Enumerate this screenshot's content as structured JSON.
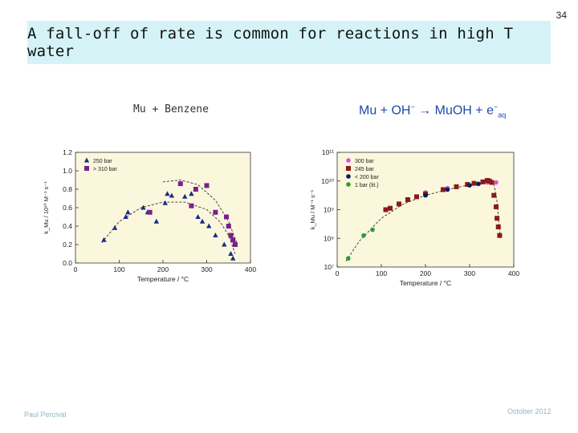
{
  "slide": {
    "number": "34",
    "title": "A fall-off of rate is common for reactions in high T water",
    "caption_left": "Mu + Benzene",
    "caption_right": {
      "r1": "Mu",
      "op1": " + ",
      "r2": "OH",
      "r2_sup": "−",
      "arrow": " → ",
      "p1": "MuOH",
      "op2": " + ",
      "p2": "e",
      "p2_sup": "−",
      "p2_sub": "aq"
    },
    "footer_author": "Paul Percival",
    "footer_date": "October 2012"
  },
  "colors": {
    "title_bg": "#d5f3f7",
    "plot_bg": "#fbf7dd",
    "navy": "#1b2a8a",
    "purple": "#7a1f8f",
    "pink": "#e04fd6",
    "brown": "#8b1a1a",
    "dark_navy": "#0b1a5c",
    "green": "#2a9a3a",
    "footer": "#8fb6c2",
    "caption_right": "#1f4aa8"
  },
  "chart_data": [
    {
      "type": "scatter",
      "title": "Mu + Benzene",
      "xlabel": "Temperature / °C",
      "ylabel": "k_Mu / 10¹⁰ M⁻¹ s⁻¹",
      "xlim": [
        0,
        400
      ],
      "ylim": [
        0,
        1.2
      ],
      "xticks": [
        0,
        100,
        200,
        300,
        400
      ],
      "yticks": [
        0.0,
        0.2,
        0.4,
        0.6,
        0.8,
        1.0,
        1.2
      ],
      "xtick_labels": [
        "0",
        "100",
        "200",
        "300",
        "400"
      ],
      "ytick_labels": [
        "0.0",
        "0.2",
        "0.4",
        "0.6",
        "0.8",
        "1.0",
        "1.2"
      ],
      "legend_position": "top-left",
      "series": [
        {
          "name": "250 bar",
          "marker": "triangle",
          "color": "#1b2a8a",
          "points": [
            [
              65,
              0.25
            ],
            [
              90,
              0.38
            ],
            [
              115,
              0.5
            ],
            [
              120,
              0.55
            ],
            [
              155,
              0.6
            ],
            [
              165,
              0.55
            ],
            [
              185,
              0.45
            ],
            [
              205,
              0.65
            ],
            [
              210,
              0.75
            ],
            [
              220,
              0.73
            ],
            [
              250,
              0.72
            ],
            [
              265,
              0.75
            ],
            [
              280,
              0.5
            ],
            [
              290,
              0.45
            ],
            [
              305,
              0.4
            ],
            [
              320,
              0.3
            ],
            [
              340,
              0.2
            ],
            [
              355,
              0.1
            ],
            [
              360,
              0.05
            ]
          ]
        },
        {
          "name": "> 310 bar",
          "marker": "square",
          "color": "#7a1f8f",
          "points": [
            [
              170,
              0.55
            ],
            [
              240,
              0.86
            ],
            [
              275,
              0.8
            ],
            [
              265,
              0.62
            ],
            [
              300,
              0.84
            ],
            [
              320,
              0.55
            ],
            [
              345,
              0.5
            ],
            [
              350,
              0.4
            ],
            [
              355,
              0.3
            ],
            [
              360,
              0.25
            ],
            [
              365,
              0.2
            ]
          ]
        }
      ],
      "fit_curves": [
        [
          [
            60,
            0.22
          ],
          [
            100,
            0.45
          ],
          [
            150,
            0.6
          ],
          [
            200,
            0.66
          ],
          [
            250,
            0.66
          ],
          [
            300,
            0.58
          ],
          [
            330,
            0.45
          ],
          [
            350,
            0.3
          ],
          [
            365,
            0.1
          ]
        ],
        [
          [
            200,
            0.88
          ],
          [
            240,
            0.9
          ],
          [
            280,
            0.85
          ],
          [
            320,
            0.68
          ],
          [
            350,
            0.45
          ],
          [
            370,
            0.2
          ]
        ]
      ]
    },
    {
      "type": "scatter",
      "title": "Mu + OH⁻ → MuOH + e⁻(aq)",
      "xlabel": "Temperature / °C",
      "ylabel": "k_Mu / M⁻¹ s⁻¹",
      "xlim": [
        0,
        400
      ],
      "ylim_log10": [
        7,
        11
      ],
      "yscale": "log",
      "xticks": [
        0,
        100,
        200,
        300,
        400
      ],
      "yticks_log10": [
        7,
        8,
        9,
        10,
        11
      ],
      "xtick_labels": [
        "0",
        "100",
        "200",
        "300",
        "400"
      ],
      "ytick_labels": [
        "10⁷",
        "10⁸",
        "10⁹",
        "10¹⁰",
        "10¹¹"
      ],
      "legend_position": "top-left",
      "series": [
        {
          "name": "300 bar",
          "marker": "circle",
          "color": "#e04fd6",
          "points": [
            [
              200,
              9.6
            ],
            [
              250,
              9.75
            ],
            [
              320,
              9.9
            ],
            [
              340,
              9.95
            ],
            [
              360,
              9.95
            ]
          ]
        },
        {
          "name": "245 bar",
          "marker": "square",
          "color": "#8b1a1a",
          "points": [
            [
              110,
              9.0
            ],
            [
              120,
              9.05
            ],
            [
              140,
              9.2
            ],
            [
              160,
              9.35
            ],
            [
              180,
              9.45
            ],
            [
              200,
              9.55
            ],
            [
              240,
              9.7
            ],
            [
              270,
              9.8
            ],
            [
              295,
              9.88
            ],
            [
              310,
              9.92
            ],
            [
              330,
              9.97
            ],
            [
              340,
              10.02
            ],
            [
              345,
              10.0
            ],
            [
              350,
              9.95
            ],
            [
              355,
              9.5
            ],
            [
              360,
              9.1
            ],
            [
              362,
              8.7
            ],
            [
              365,
              8.4
            ],
            [
              368,
              8.1
            ]
          ]
        },
        {
          "name": "< 200 bar",
          "marker": "circle",
          "color": "#0b1a5c",
          "points": [
            [
              200,
              9.5
            ],
            [
              250,
              9.7
            ],
            [
              300,
              9.85
            ],
            [
              320,
              9.9
            ]
          ]
        },
        {
          "name": "1 bar (lit.)",
          "marker": "circle",
          "color": "#2a9a3a",
          "points": [
            [
              25,
              7.3
            ],
            [
              60,
              8.1
            ],
            [
              80,
              8.3
            ]
          ]
        }
      ],
      "fit_curves": [
        [
          [
            20,
            7.2
          ],
          [
            50,
            7.9
          ],
          [
            100,
            8.7
          ],
          [
            150,
            9.2
          ],
          [
            200,
            9.5
          ],
          [
            250,
            9.7
          ],
          [
            300,
            9.87
          ],
          [
            330,
            9.95
          ],
          [
            345,
            9.97
          ]
        ],
        [
          [
            355,
            9.9
          ],
          [
            362,
            9.3
          ],
          [
            366,
            8.6
          ],
          [
            370,
            8.0
          ]
        ]
      ]
    }
  ]
}
